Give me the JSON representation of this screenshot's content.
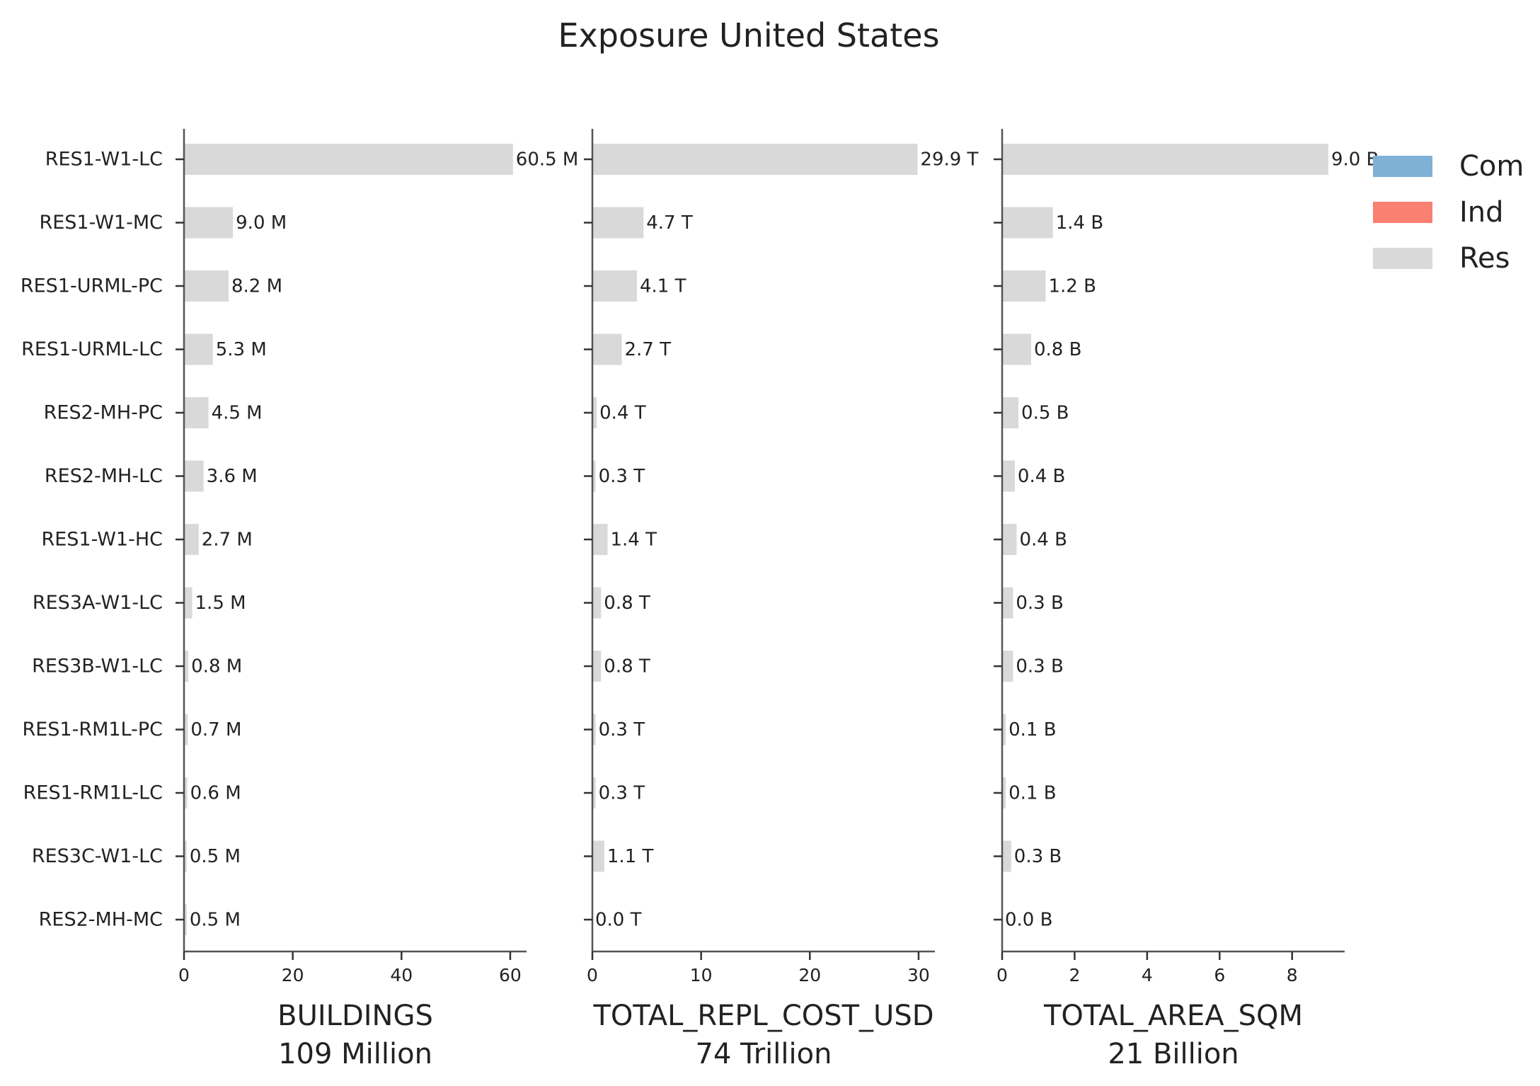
{
  "chart_data": {
    "type": "bar",
    "orientation": "horizontal",
    "title": "Exposure United States",
    "categories": [
      "RES1-W1-LC",
      "RES1-W1-MC",
      "RES1-URML-PC",
      "RES1-URML-LC",
      "RES2-MH-PC",
      "RES2-MH-LC",
      "RES1-W1-HC",
      "RES3A-W1-LC",
      "RES3B-W1-LC",
      "RES1-RM1L-PC",
      "RES1-RM1L-LC",
      "RES3C-W1-LC",
      "RES2-MH-MC"
    ],
    "panels": [
      {
        "xlabel": "BUILDINGS",
        "total": "109 Million",
        "xlim": [
          0,
          63
        ],
        "xticks": [
          0,
          20,
          40,
          60
        ],
        "values": [
          60.5,
          9.0,
          8.2,
          5.3,
          4.5,
          3.6,
          2.7,
          1.5,
          0.8,
          0.7,
          0.6,
          0.5,
          0.5
        ],
        "labels": [
          "60.5 M",
          "9.0 M",
          "8.2 M",
          "5.3 M",
          "4.5 M",
          "3.6 M",
          "2.7 M",
          "1.5 M",
          "0.8 M",
          "0.7 M",
          "0.6 M",
          "0.5 M",
          "0.5 M"
        ]
      },
      {
        "xlabel": "TOTAL_REPL_COST_USD",
        "total": "74 Trillion",
        "xlim": [
          0,
          31.5
        ],
        "xticks": [
          0,
          10,
          20,
          30
        ],
        "values": [
          29.9,
          4.7,
          4.1,
          2.7,
          0.4,
          0.3,
          1.4,
          0.8,
          0.8,
          0.3,
          0.3,
          1.1,
          0.0
        ],
        "labels": [
          "29.9 T",
          "4.7 T",
          "4.1 T",
          "2.7 T",
          "0.4 T",
          "0.3 T",
          "1.4 T",
          "0.8 T",
          "0.8 T",
          "0.3 T",
          "0.3 T",
          "1.1 T",
          "0.0 T"
        ]
      },
      {
        "xlabel": "TOTAL_AREA_SQM",
        "total": "21 Billion",
        "xlim": [
          0,
          9.45
        ],
        "xticks": [
          0,
          2,
          4,
          6,
          8
        ],
        "values": [
          9.0,
          1.4,
          1.2,
          0.8,
          0.45,
          0.35,
          0.4,
          0.3,
          0.3,
          0.1,
          0.1,
          0.25,
          0.0
        ],
        "labels": [
          "9.0 B",
          "1.4 B",
          "1.2 B",
          "0.8 B",
          "0.5 B",
          "0.4 B",
          "0.4 B",
          "0.3 B",
          "0.3 B",
          "0.1 B",
          "0.1 B",
          "0.3 B",
          "0.0 B"
        ]
      }
    ],
    "legend": {
      "position": "top-right",
      "items": [
        {
          "name": "Com",
          "color": "#7fb1d5"
        },
        {
          "name": "Ind",
          "color": "#fa8072"
        },
        {
          "name": "Res",
          "color": "#d9d9d9"
        }
      ]
    },
    "bar_color": "#d9d9d9",
    "axis_color": "#555555",
    "grid": false
  }
}
